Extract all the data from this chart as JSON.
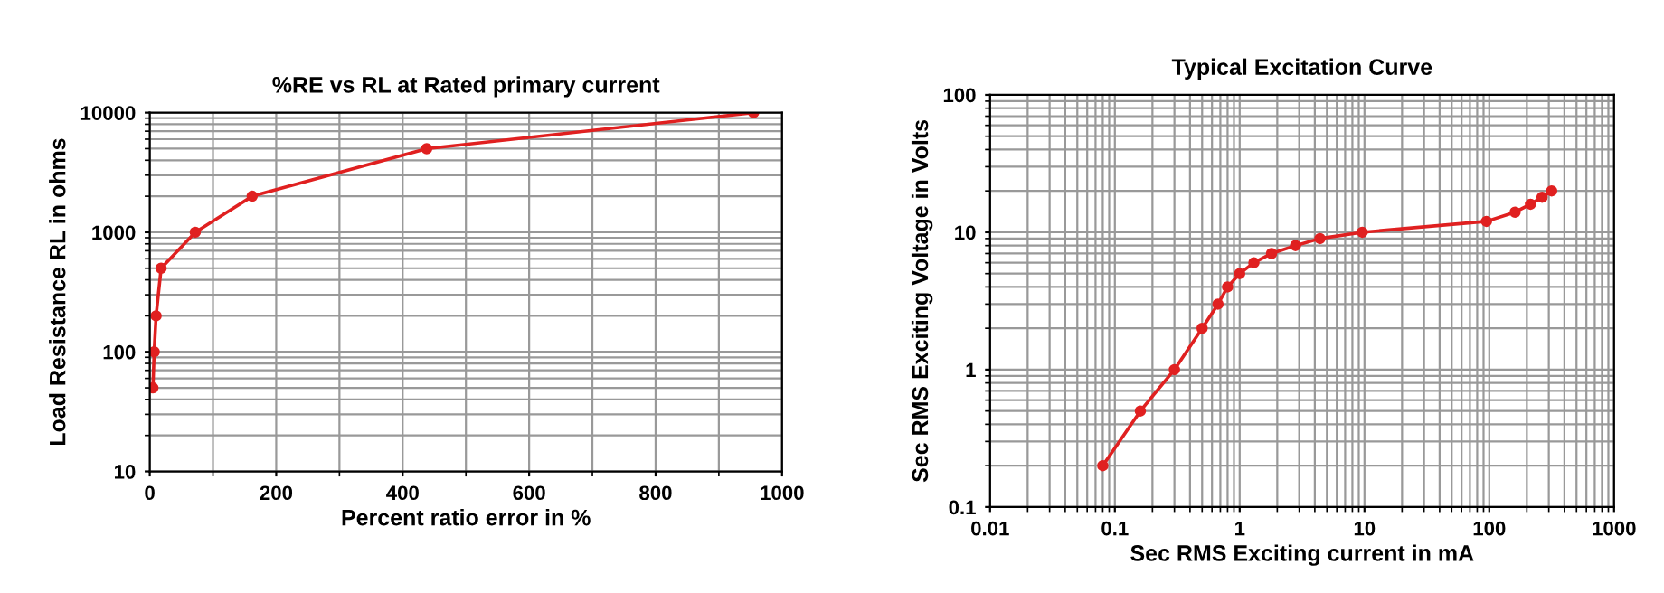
{
  "chart_data": [
    {
      "type": "line",
      "title": "%RE vs RL at Rated primary current",
      "xlabel": "Percent ratio error in %",
      "ylabel": "Load Resistance RL in ohms",
      "log": "y",
      "grid": true,
      "marker": "circle",
      "line_style": "solid",
      "xlim": [
        0,
        1000
      ],
      "xticks": [
        0,
        200,
        400,
        600,
        800,
        1000
      ],
      "ylim": [
        10,
        10000
      ],
      "yticks": [
        10,
        100,
        1000,
        10000
      ],
      "series": [
        {
          "color": "#e02020",
          "x": [
            5,
            7,
            10,
            18,
            72,
            162,
            438,
            955
          ],
          "values": [
            50,
            100,
            200,
            500,
            1000,
            2000,
            5000,
            10000
          ]
        }
      ]
    },
    {
      "type": "line",
      "title": "Typical Excitation Curve",
      "xlabel": "Sec RMS Exciting current in mA",
      "ylabel": "Sec RMS Exciting Voltage in Volts",
      "log": "xy",
      "grid": true,
      "marker": "circle",
      "line_style": "solid",
      "xlim": [
        0.01,
        1000
      ],
      "xticks": [
        0.01,
        0.1,
        1,
        10,
        100,
        1000
      ],
      "ylim": [
        0.1,
        100
      ],
      "yticks": [
        0.1,
        1,
        10,
        100
      ],
      "series": [
        {
          "color": "#e02020",
          "x": [
            0.08,
            0.16,
            0.3,
            0.5,
            0.67,
            0.8,
            1.0,
            1.3,
            1.8,
            2.8,
            4.4,
            9.6,
            95,
            161,
            214,
            265,
            316
          ],
          "values": [
            0.2,
            0.5,
            1,
            2,
            3,
            4,
            5,
            6,
            7,
            8,
            9,
            10,
            12,
            14,
            16,
            18,
            20
          ]
        }
      ]
    }
  ]
}
